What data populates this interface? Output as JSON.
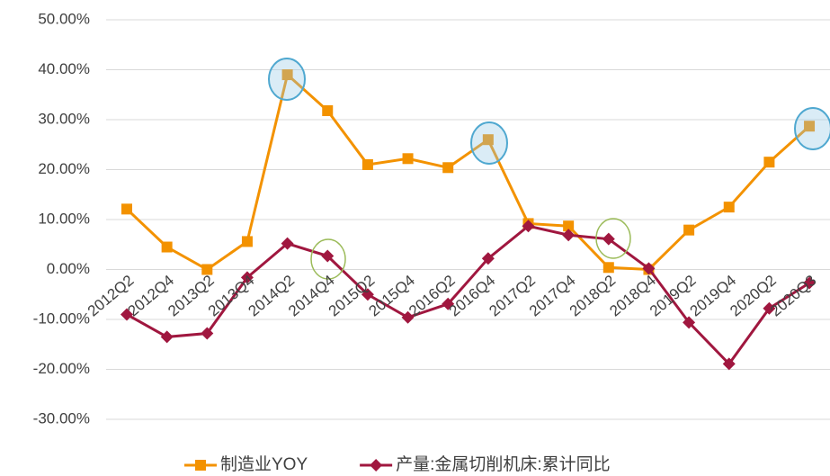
{
  "chart_data": {
    "type": "line",
    "categories": [
      "2012Q2",
      "2012Q4",
      "2013Q2",
      "2013Q4",
      "2014Q2",
      "2014Q4",
      "2015Q2",
      "2015Q4",
      "2016Q2",
      "2016Q4",
      "2017Q2",
      "2017Q4",
      "2018Q2",
      "2018Q4",
      "2019Q2",
      "2019Q4",
      "2020Q2",
      "2020Q3"
    ],
    "series": [
      {
        "name": "制造业YOY",
        "color": "#f39200",
        "marker": "square",
        "values": [
          12.1,
          4.5,
          0,
          5.6,
          39,
          31.8,
          21,
          22.2,
          20.4,
          26,
          9.2,
          8.7,
          0.4,
          0,
          7.9,
          12.5,
          21.5,
          28.7
        ]
      },
      {
        "name": "产量:金属切削机床:累计同比",
        "color": "#a0173f",
        "marker": "diamond",
        "values": [
          -9,
          -13.5,
          -12.8,
          -1.6,
          5.2,
          2.7,
          -5,
          -9.6,
          -6.9,
          2.2,
          8.7,
          6.9,
          6.1,
          0.2,
          -10.6,
          -18.9,
          -7.8,
          -2.7
        ]
      }
    ],
    "ylim": [
      -30,
      50
    ],
    "yticks": [
      {
        "value": -30,
        "label": "-30.00%"
      },
      {
        "value": -20,
        "label": "-20.00%"
      },
      {
        "value": -10,
        "label": "-10.00%"
      },
      {
        "value": 0,
        "label": "0.00%"
      },
      {
        "value": 10,
        "label": "10.00%"
      },
      {
        "value": 20,
        "label": "20.00%"
      },
      {
        "value": 30,
        "label": "30.00%"
      },
      {
        "value": 40,
        "label": "40.00%"
      },
      {
        "value": 50,
        "label": "50.00%"
      }
    ],
    "grid": true,
    "legend": "bottom"
  }
}
